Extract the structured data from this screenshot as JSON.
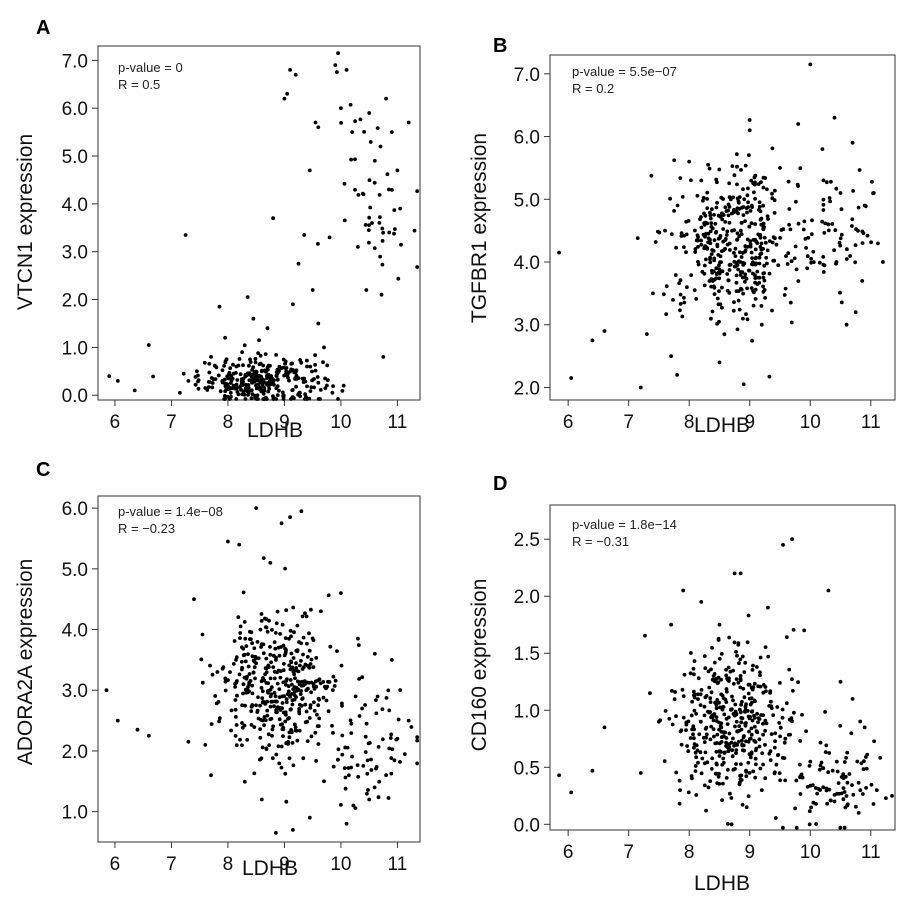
{
  "chart_data": [
    {
      "type": "scatter",
      "panel_label": "A",
      "xlabel": "LDHB",
      "ylabel": "VTCN1 expression",
      "xlim": [
        5.7,
        11.4
      ],
      "ylim": [
        -0.1,
        7.3
      ],
      "xticks": [
        "6",
        "7",
        "8",
        "9",
        "10",
        "11"
      ],
      "yticks": [
        "0.0",
        "1.0",
        "2.0",
        "3.0",
        "4.0",
        "5.0",
        "6.0",
        "7.0"
      ],
      "annotations": [
        "p-value = 0",
        "R = 0.5"
      ],
      "correlation": 0.5,
      "grid": false,
      "points": [
        [
          5.9,
          0.4
        ],
        [
          6.05,
          0.3
        ],
        [
          6.35,
          0.1
        ],
        [
          6.6,
          1.05
        ],
        [
          7.25,
          3.35
        ],
        [
          7.15,
          0.05
        ],
        [
          7.3,
          0.3
        ],
        [
          7.45,
          0.5
        ],
        [
          7.6,
          0.15
        ],
        [
          7.7,
          0.8
        ],
        [
          7.85,
          1.85
        ],
        [
          7.95,
          1.2
        ],
        [
          8.1,
          0.2
        ],
        [
          8.25,
          0.9
        ],
        [
          8.35,
          2.05
        ],
        [
          8.45,
          1.6
        ],
        [
          8.6,
          0.35
        ],
        [
          8.7,
          1.4
        ],
        [
          8.8,
          3.7
        ],
        [
          8.9,
          0.5
        ],
        [
          9.0,
          6.2
        ],
        [
          9.05,
          6.3
        ],
        [
          9.1,
          6.8
        ],
        [
          9.2,
          6.7
        ],
        [
          9.35,
          3.35
        ],
        [
          9.45,
          4.7
        ],
        [
          9.55,
          5.7
        ],
        [
          9.6,
          5.6
        ],
        [
          9.7,
          1.0
        ],
        [
          9.8,
          3.3
        ],
        [
          9.9,
          6.9
        ],
        [
          10.0,
          6.0
        ],
        [
          10.1,
          6.8
        ],
        [
          9.95,
          7.15
        ],
        [
          10.2,
          5.5
        ],
        [
          10.3,
          3.1
        ],
        [
          10.4,
          4.2
        ],
        [
          10.5,
          5.9
        ],
        [
          10.55,
          3.6
        ],
        [
          10.6,
          4.9
        ],
        [
          10.7,
          5.2
        ],
        [
          10.8,
          6.2
        ],
        [
          10.85,
          4.3
        ],
        [
          10.9,
          5.5
        ],
        [
          11.0,
          4.7
        ],
        [
          11.05,
          3.9
        ],
        [
          11.2,
          5.7
        ],
        [
          10.75,
          0.8
        ],
        [
          10.45,
          2.2
        ],
        [
          9.6,
          1.5
        ],
        [
          9.25,
          2.75
        ],
        [
          9.15,
          1.9
        ],
        [
          9.4,
          0.6
        ],
        [
          9.5,
          2.2
        ],
        [
          8.55,
          1.15
        ],
        [
          8.15,
          0.6
        ],
        [
          7.9,
          0.3
        ],
        [
          8.05,
          0.05
        ],
        [
          9.85,
          0.05
        ],
        [
          10.05,
          0.2
        ]
      ],
      "cluster": {
        "x_center": 8.6,
        "y_center": 0.3,
        "x_spread": 0.55,
        "y_spread": 0.25,
        "count": 300
      },
      "cluster2": {
        "x_center": 10.6,
        "y_center": 4.3,
        "x_spread": 0.35,
        "y_spread": 0.9,
        "count": 45
      }
    },
    {
      "type": "scatter",
      "panel_label": "B",
      "xlabel": "LDHB",
      "ylabel": "TGFBR1 expression",
      "xlim": [
        5.7,
        11.4
      ],
      "ylim": [
        1.8,
        7.3
      ],
      "xticks": [
        "6",
        "7",
        "8",
        "9",
        "10",
        "11"
      ],
      "yticks": [
        "2.0",
        "3.0",
        "4.0",
        "5.0",
        "6.0",
        "7.0"
      ],
      "annotations": [
        "p-value = 5.5e−07",
        "R = 0.2"
      ],
      "correlation": 0.2,
      "grid": false,
      "points": [
        [
          5.85,
          4.15
        ],
        [
          6.05,
          2.15
        ],
        [
          6.4,
          2.75
        ],
        [
          6.6,
          2.9
        ],
        [
          7.2,
          2.0
        ],
        [
          7.3,
          2.85
        ],
        [
          7.4,
          3.5
        ],
        [
          7.6,
          4.5
        ],
        [
          7.7,
          2.5
        ],
        [
          7.8,
          2.2
        ],
        [
          8.0,
          5.6
        ],
        [
          8.2,
          5.3
        ],
        [
          8.5,
          2.4
        ],
        [
          8.9,
          2.05
        ],
        [
          9.0,
          6.1
        ],
        [
          9.2,
          3.0
        ],
        [
          9.5,
          5.5
        ],
        [
          9.8,
          6.2
        ],
        [
          10.0,
          7.15
        ],
        [
          10.2,
          5.8
        ],
        [
          10.4,
          6.3
        ],
        [
          10.5,
          5.1
        ],
        [
          10.7,
          5.9
        ],
        [
          10.75,
          3.2
        ],
        [
          10.9,
          4.9
        ],
        [
          11.05,
          5.1
        ],
        [
          11.2,
          4.0
        ],
        [
          10.6,
          3.0
        ],
        [
          9.95,
          3.9
        ],
        [
          10.3,
          4.6
        ]
      ],
      "cluster": {
        "x_center": 8.7,
        "y_center": 4.3,
        "x_spread": 0.5,
        "y_spread": 0.6,
        "count": 420
      },
      "cluster2": {
        "x_center": 10.4,
        "y_center": 4.4,
        "x_spread": 0.4,
        "y_spread": 0.5,
        "count": 70
      }
    },
    {
      "type": "scatter",
      "panel_label": "C",
      "xlabel": "LDHB",
      "ylabel": "ADORA2A expression",
      "xlim": [
        5.7,
        11.4
      ],
      "ylim": [
        0.5,
        6.2
      ],
      "xticks": [
        "6",
        "7",
        "8",
        "9",
        "10",
        "11"
      ],
      "yticks": [
        "1.0",
        "2.0",
        "3.0",
        "4.0",
        "5.0",
        "6.0"
      ],
      "annotations": [
        "p-value = 1.4e−08",
        "R = −0.23"
      ],
      "correlation": -0.23,
      "grid": false,
      "points": [
        [
          5.85,
          3.0
        ],
        [
          6.05,
          2.5
        ],
        [
          6.4,
          2.35
        ],
        [
          6.6,
          2.25
        ],
        [
          7.3,
          2.15
        ],
        [
          7.4,
          4.5
        ],
        [
          7.6,
          2.1
        ],
        [
          7.7,
          1.6
        ],
        [
          8.0,
          5.45
        ],
        [
          8.2,
          5.4
        ],
        [
          8.5,
          6.0
        ],
        [
          8.75,
          5.1
        ],
        [
          8.95,
          5.75
        ],
        [
          9.1,
          5.85
        ],
        [
          9.3,
          5.95
        ],
        [
          8.85,
          0.65
        ],
        [
          9.15,
          0.7
        ],
        [
          9.45,
          0.9
        ],
        [
          8.6,
          1.2
        ],
        [
          10.0,
          4.6
        ],
        [
          10.3,
          3.85
        ],
        [
          10.6,
          3.6
        ],
        [
          10.9,
          3.5
        ],
        [
          11.05,
          3.0
        ],
        [
          11.2,
          2.5
        ],
        [
          10.1,
          0.8
        ],
        [
          10.5,
          1.2
        ],
        [
          10.8,
          1.6
        ],
        [
          11.0,
          2.2
        ],
        [
          9.7,
          1.5
        ]
      ],
      "cluster": {
        "x_center": 8.9,
        "y_center": 3.1,
        "x_spread": 0.5,
        "y_spread": 0.6,
        "count": 420
      },
      "cluster2": {
        "x_center": 10.4,
        "y_center": 2.1,
        "x_spread": 0.4,
        "y_spread": 0.5,
        "count": 80
      }
    },
    {
      "type": "scatter",
      "panel_label": "D",
      "xlabel": "LDHB",
      "ylabel": "CD160 expression",
      "xlim": [
        5.7,
        11.4
      ],
      "ylim": [
        -0.05,
        2.8
      ],
      "xticks": [
        "6",
        "7",
        "8",
        "9",
        "10",
        "11"
      ],
      "yticks": [
        "0.0",
        "0.5",
        "1.0",
        "1.5",
        "2.0",
        "2.5"
      ],
      "annotations": [
        "p-value = 1.8e−14",
        "R = −0.31"
      ],
      "correlation": -0.31,
      "grid": false,
      "points": [
        [
          5.85,
          0.43
        ],
        [
          6.05,
          0.28
        ],
        [
          6.4,
          0.47
        ],
        [
          6.6,
          0.85
        ],
        [
          7.2,
          0.45
        ],
        [
          7.35,
          1.15
        ],
        [
          7.5,
          0.9
        ],
        [
          7.7,
          1.75
        ],
        [
          7.9,
          2.05
        ],
        [
          8.2,
          1.95
        ],
        [
          8.5,
          1.75
        ],
        [
          8.75,
          2.2
        ],
        [
          8.85,
          2.2
        ],
        [
          9.3,
          1.9
        ],
        [
          9.55,
          2.45
        ],
        [
          9.7,
          2.5
        ],
        [
          9.9,
          1.7
        ],
        [
          10.3,
          2.05
        ],
        [
          10.5,
          1.25
        ],
        [
          10.7,
          1.1
        ],
        [
          10.9,
          0.85
        ],
        [
          11.1,
          0.3
        ],
        [
          11.25,
          0.23
        ],
        [
          10.8,
          0.1
        ],
        [
          10.4,
          0.2
        ],
        [
          8.7,
          0.0
        ],
        [
          8.95,
          0.15
        ],
        [
          9.2,
          0.3
        ],
        [
          10.0,
          0.55
        ],
        [
          7.85,
          0.3
        ]
      ],
      "cluster": {
        "x_center": 8.7,
        "y_center": 0.9,
        "x_spread": 0.5,
        "y_spread": 0.35,
        "count": 430
      },
      "cluster2": {
        "x_center": 10.4,
        "y_center": 0.4,
        "x_spread": 0.45,
        "y_spread": 0.25,
        "count": 90
      }
    }
  ]
}
